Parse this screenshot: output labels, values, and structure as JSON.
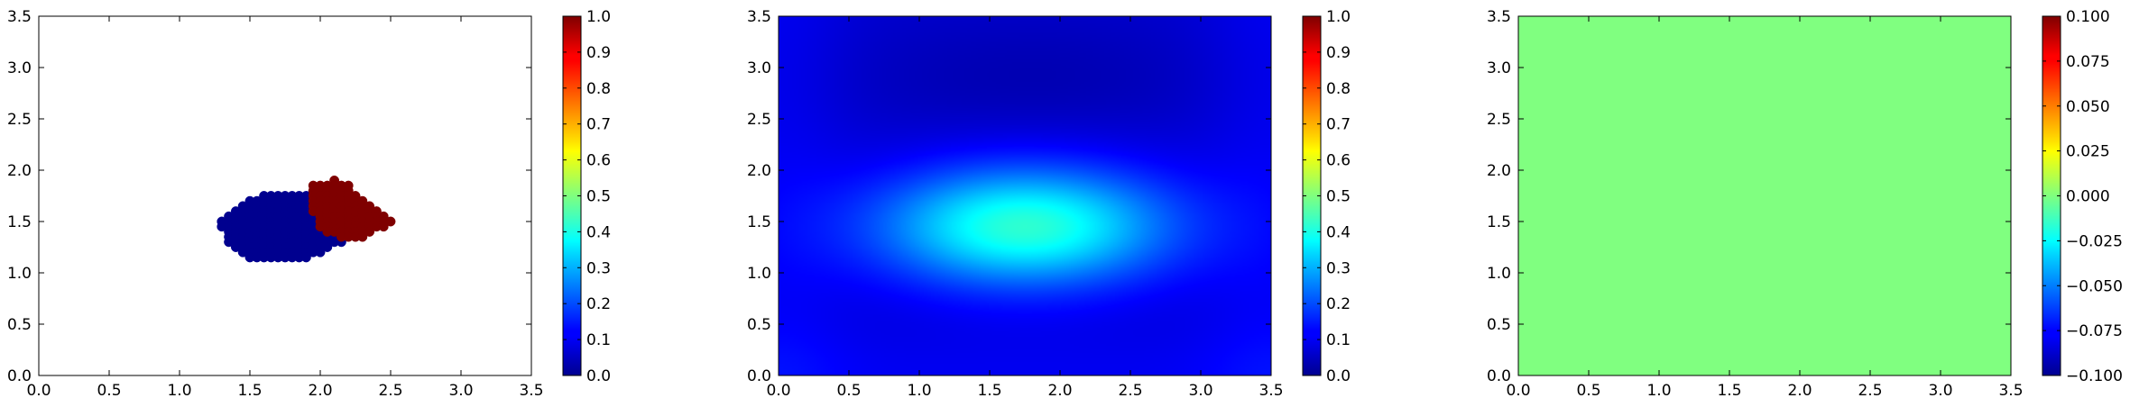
{
  "chart_data": [
    {
      "type": "scatter",
      "title": "",
      "xlabel": "",
      "ylabel": "",
      "xlim": [
        0.0,
        3.5
      ],
      "ylim": [
        0.0,
        3.5
      ],
      "xticks": [
        "0.0",
        "0.5",
        "1.0",
        "1.5",
        "2.0",
        "2.5",
        "3.0",
        "3.5"
      ],
      "yticks": [
        "0.0",
        "0.5",
        "1.0",
        "1.5",
        "2.0",
        "2.5",
        "3.0",
        "3.5"
      ],
      "colormap": "jet",
      "grid": false,
      "series": [
        {
          "value": 0,
          "color": "#00008f",
          "points": [
            [
              1.3,
              1.5
            ],
            [
              1.3,
              1.45
            ],
            [
              1.35,
              1.55
            ],
            [
              1.35,
              1.5
            ],
            [
              1.35,
              1.45
            ],
            [
              1.35,
              1.4
            ],
            [
              1.35,
              1.35
            ],
            [
              1.35,
              1.3
            ],
            [
              1.4,
              1.6
            ],
            [
              1.4,
              1.55
            ],
            [
              1.4,
              1.5
            ],
            [
              1.4,
              1.45
            ],
            [
              1.4,
              1.4
            ],
            [
              1.4,
              1.35
            ],
            [
              1.4,
              1.3
            ],
            [
              1.4,
              1.25
            ],
            [
              1.45,
              1.65
            ],
            [
              1.45,
              1.6
            ],
            [
              1.45,
              1.55
            ],
            [
              1.45,
              1.5
            ],
            [
              1.45,
              1.45
            ],
            [
              1.45,
              1.4
            ],
            [
              1.45,
              1.35
            ],
            [
              1.45,
              1.3
            ],
            [
              1.45,
              1.25
            ],
            [
              1.45,
              1.2
            ],
            [
              1.5,
              1.7
            ],
            [
              1.5,
              1.65
            ],
            [
              1.5,
              1.6
            ],
            [
              1.5,
              1.55
            ],
            [
              1.5,
              1.5
            ],
            [
              1.5,
              1.45
            ],
            [
              1.5,
              1.4
            ],
            [
              1.5,
              1.35
            ],
            [
              1.5,
              1.3
            ],
            [
              1.5,
              1.25
            ],
            [
              1.5,
              1.2
            ],
            [
              1.5,
              1.15
            ],
            [
              1.55,
              1.7
            ],
            [
              1.55,
              1.65
            ],
            [
              1.55,
              1.6
            ],
            [
              1.55,
              1.55
            ],
            [
              1.55,
              1.5
            ],
            [
              1.55,
              1.45
            ],
            [
              1.55,
              1.4
            ],
            [
              1.55,
              1.35
            ],
            [
              1.55,
              1.3
            ],
            [
              1.55,
              1.25
            ],
            [
              1.55,
              1.2
            ],
            [
              1.55,
              1.15
            ],
            [
              1.6,
              1.75
            ],
            [
              1.6,
              1.7
            ],
            [
              1.6,
              1.65
            ],
            [
              1.6,
              1.6
            ],
            [
              1.6,
              1.55
            ],
            [
              1.6,
              1.5
            ],
            [
              1.6,
              1.45
            ],
            [
              1.6,
              1.4
            ],
            [
              1.6,
              1.35
            ],
            [
              1.6,
              1.3
            ],
            [
              1.6,
              1.25
            ],
            [
              1.6,
              1.2
            ],
            [
              1.6,
              1.15
            ],
            [
              1.65,
              1.75
            ],
            [
              1.65,
              1.7
            ],
            [
              1.65,
              1.65
            ],
            [
              1.65,
              1.6
            ],
            [
              1.65,
              1.55
            ],
            [
              1.65,
              1.5
            ],
            [
              1.65,
              1.45
            ],
            [
              1.65,
              1.4
            ],
            [
              1.65,
              1.35
            ],
            [
              1.65,
              1.3
            ],
            [
              1.65,
              1.25
            ],
            [
              1.65,
              1.2
            ],
            [
              1.65,
              1.15
            ],
            [
              1.7,
              1.75
            ],
            [
              1.7,
              1.7
            ],
            [
              1.7,
              1.65
            ],
            [
              1.7,
              1.6
            ],
            [
              1.7,
              1.55
            ],
            [
              1.7,
              1.5
            ],
            [
              1.7,
              1.45
            ],
            [
              1.7,
              1.4
            ],
            [
              1.7,
              1.35
            ],
            [
              1.7,
              1.3
            ],
            [
              1.7,
              1.25
            ],
            [
              1.7,
              1.2
            ],
            [
              1.7,
              1.15
            ],
            [
              1.75,
              1.75
            ],
            [
              1.75,
              1.7
            ],
            [
              1.75,
              1.65
            ],
            [
              1.75,
              1.6
            ],
            [
              1.75,
              1.55
            ],
            [
              1.75,
              1.5
            ],
            [
              1.75,
              1.45
            ],
            [
              1.75,
              1.4
            ],
            [
              1.75,
              1.35
            ],
            [
              1.75,
              1.3
            ],
            [
              1.75,
              1.25
            ],
            [
              1.75,
              1.2
            ],
            [
              1.75,
              1.15
            ],
            [
              1.8,
              1.75
            ],
            [
              1.8,
              1.7
            ],
            [
              1.8,
              1.65
            ],
            [
              1.8,
              1.6
            ],
            [
              1.8,
              1.55
            ],
            [
              1.8,
              1.5
            ],
            [
              1.8,
              1.45
            ],
            [
              1.8,
              1.4
            ],
            [
              1.8,
              1.35
            ],
            [
              1.8,
              1.3
            ],
            [
              1.8,
              1.25
            ],
            [
              1.8,
              1.2
            ],
            [
              1.8,
              1.15
            ],
            [
              1.85,
              1.75
            ],
            [
              1.85,
              1.7
            ],
            [
              1.85,
              1.65
            ],
            [
              1.85,
              1.6
            ],
            [
              1.85,
              1.55
            ],
            [
              1.85,
              1.5
            ],
            [
              1.85,
              1.45
            ],
            [
              1.85,
              1.4
            ],
            [
              1.85,
              1.35
            ],
            [
              1.85,
              1.3
            ],
            [
              1.85,
              1.25
            ],
            [
              1.85,
              1.2
            ],
            [
              1.85,
              1.15
            ],
            [
              1.9,
              1.75
            ],
            [
              1.9,
              1.7
            ],
            [
              1.9,
              1.65
            ],
            [
              1.9,
              1.6
            ],
            [
              1.9,
              1.55
            ],
            [
              1.9,
              1.5
            ],
            [
              1.9,
              1.45
            ],
            [
              1.9,
              1.4
            ],
            [
              1.9,
              1.35
            ],
            [
              1.9,
              1.3
            ],
            [
              1.9,
              1.25
            ],
            [
              1.9,
              1.2
            ],
            [
              1.9,
              1.15
            ],
            [
              1.95,
              1.55
            ],
            [
              1.95,
              1.5
            ],
            [
              1.95,
              1.45
            ],
            [
              1.95,
              1.4
            ],
            [
              1.95,
              1.35
            ],
            [
              1.95,
              1.3
            ],
            [
              1.95,
              1.25
            ],
            [
              1.95,
              1.2
            ],
            [
              2.0,
              1.4
            ],
            [
              2.0,
              1.35
            ],
            [
              2.0,
              1.3
            ],
            [
              2.0,
              1.25
            ],
            [
              2.0,
              1.2
            ],
            [
              2.05,
              1.35
            ],
            [
              2.05,
              1.3
            ],
            [
              2.05,
              1.25
            ],
            [
              2.1,
              1.35
            ],
            [
              2.1,
              1.3
            ],
            [
              2.15,
              1.3
            ]
          ]
        },
        {
          "value": 1,
          "color": "#7f0000",
          "points": [
            [
              1.95,
              1.85
            ],
            [
              1.95,
              1.8
            ],
            [
              1.95,
              1.75
            ],
            [
              1.95,
              1.7
            ],
            [
              1.95,
              1.65
            ],
            [
              1.95,
              1.6
            ],
            [
              2.0,
              1.85
            ],
            [
              2.0,
              1.8
            ],
            [
              2.0,
              1.75
            ],
            [
              2.0,
              1.7
            ],
            [
              2.0,
              1.65
            ],
            [
              2.0,
              1.6
            ],
            [
              2.0,
              1.55
            ],
            [
              2.0,
              1.5
            ],
            [
              2.0,
              1.45
            ],
            [
              2.05,
              1.85
            ],
            [
              2.05,
              1.8
            ],
            [
              2.05,
              1.75
            ],
            [
              2.05,
              1.7
            ],
            [
              2.05,
              1.65
            ],
            [
              2.05,
              1.6
            ],
            [
              2.05,
              1.55
            ],
            [
              2.05,
              1.5
            ],
            [
              2.05,
              1.45
            ],
            [
              2.05,
              1.4
            ],
            [
              2.1,
              1.9
            ],
            [
              2.1,
              1.85
            ],
            [
              2.1,
              1.8
            ],
            [
              2.1,
              1.75
            ],
            [
              2.1,
              1.7
            ],
            [
              2.1,
              1.65
            ],
            [
              2.1,
              1.6
            ],
            [
              2.1,
              1.55
            ],
            [
              2.1,
              1.5
            ],
            [
              2.1,
              1.45
            ],
            [
              2.1,
              1.4
            ],
            [
              2.15,
              1.85
            ],
            [
              2.15,
              1.8
            ],
            [
              2.15,
              1.75
            ],
            [
              2.15,
              1.7
            ],
            [
              2.15,
              1.65
            ],
            [
              2.15,
              1.6
            ],
            [
              2.15,
              1.55
            ],
            [
              2.15,
              1.5
            ],
            [
              2.15,
              1.45
            ],
            [
              2.15,
              1.4
            ],
            [
              2.15,
              1.35
            ],
            [
              2.2,
              1.85
            ],
            [
              2.2,
              1.8
            ],
            [
              2.2,
              1.75
            ],
            [
              2.2,
              1.7
            ],
            [
              2.2,
              1.65
            ],
            [
              2.2,
              1.6
            ],
            [
              2.2,
              1.55
            ],
            [
              2.2,
              1.5
            ],
            [
              2.2,
              1.45
            ],
            [
              2.2,
              1.4
            ],
            [
              2.2,
              1.35
            ],
            [
              2.25,
              1.75
            ],
            [
              2.25,
              1.7
            ],
            [
              2.25,
              1.65
            ],
            [
              2.25,
              1.6
            ],
            [
              2.25,
              1.55
            ],
            [
              2.25,
              1.5
            ],
            [
              2.25,
              1.45
            ],
            [
              2.25,
              1.4
            ],
            [
              2.25,
              1.35
            ],
            [
              2.3,
              1.7
            ],
            [
              2.3,
              1.65
            ],
            [
              2.3,
              1.6
            ],
            [
              2.3,
              1.55
            ],
            [
              2.3,
              1.5
            ],
            [
              2.3,
              1.45
            ],
            [
              2.3,
              1.4
            ],
            [
              2.3,
              1.35
            ],
            [
              2.35,
              1.65
            ],
            [
              2.35,
              1.6
            ],
            [
              2.35,
              1.55
            ],
            [
              2.35,
              1.5
            ],
            [
              2.35,
              1.45
            ],
            [
              2.35,
              1.4
            ],
            [
              2.4,
              1.6
            ],
            [
              2.4,
              1.55
            ],
            [
              2.4,
              1.5
            ],
            [
              2.4,
              1.45
            ],
            [
              2.45,
              1.55
            ],
            [
              2.45,
              1.5
            ],
            [
              2.45,
              1.45
            ],
            [
              2.5,
              1.5
            ]
          ]
        }
      ],
      "colorbar": {
        "range": [
          0.0,
          1.0
        ],
        "ticks": [
          "0.0",
          "0.1",
          "0.2",
          "0.3",
          "0.4",
          "0.5",
          "0.6",
          "0.7",
          "0.8",
          "0.9",
          "1.0"
        ]
      }
    },
    {
      "type": "heatmap",
      "title": "",
      "xlabel": "",
      "ylabel": "",
      "xlim": [
        0.0,
        3.5
      ],
      "ylim": [
        0.0,
        3.5
      ],
      "xticks": [
        "0.0",
        "0.5",
        "1.0",
        "1.5",
        "2.0",
        "2.5",
        "3.0",
        "3.5"
      ],
      "yticks": [
        "0.0",
        "0.5",
        "1.0",
        "1.5",
        "2.0",
        "2.5",
        "3.0",
        "3.5"
      ],
      "colormap": "jet",
      "grid": false,
      "field": {
        "peak_location": [
          1.75,
          1.45
        ],
        "peak_value": 0.42,
        "min_value": 0.08
      },
      "colorbar": {
        "range": [
          0.0,
          1.0
        ],
        "ticks": [
          "0.0",
          "0.1",
          "0.2",
          "0.3",
          "0.4",
          "0.5",
          "0.6",
          "0.7",
          "0.8",
          "0.9",
          "1.0"
        ]
      }
    },
    {
      "type": "heatmap",
      "title": "",
      "xlabel": "",
      "ylabel": "",
      "xlim": [
        0.0,
        3.5
      ],
      "ylim": [
        0.0,
        3.5
      ],
      "xticks": [
        "0.0",
        "0.5",
        "1.0",
        "1.5",
        "2.0",
        "2.5",
        "3.0",
        "3.5"
      ],
      "yticks": [
        "0.0",
        "0.5",
        "1.0",
        "1.5",
        "2.0",
        "2.5",
        "3.0",
        "3.5"
      ],
      "colormap": "jet",
      "grid": false,
      "field": {
        "uniform_value": 0.0
      },
      "colorbar": {
        "range": [
          -0.1,
          0.1
        ],
        "ticks": [
          "−0.100",
          "−0.075",
          "−0.050",
          "−0.025",
          "0.000",
          "0.025",
          "0.050",
          "0.075",
          "0.100"
        ]
      }
    }
  ]
}
